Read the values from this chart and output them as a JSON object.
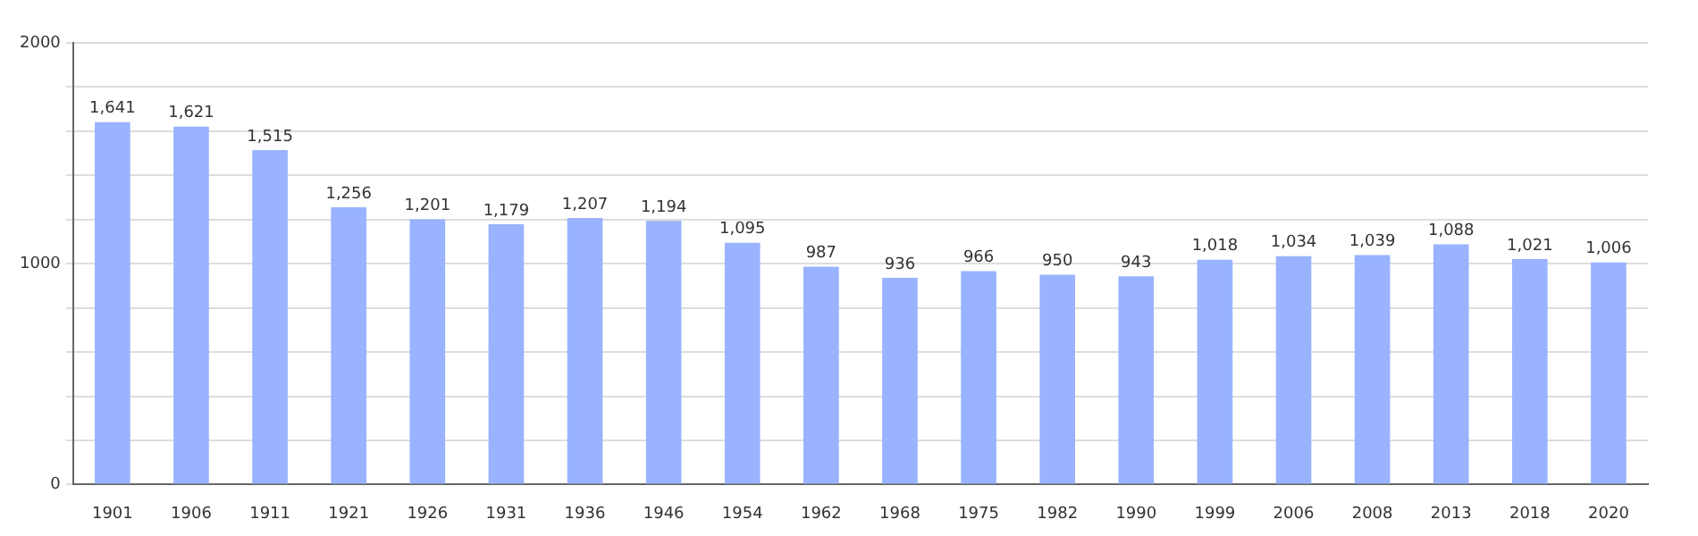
{
  "chart_data": {
    "type": "bar",
    "categories": [
      "1901",
      "1906",
      "1911",
      "1921",
      "1926",
      "1931",
      "1936",
      "1946",
      "1954",
      "1962",
      "1968",
      "1975",
      "1982",
      "1990",
      "1999",
      "2006",
      "2008",
      "2013",
      "2018",
      "2020"
    ],
    "values": [
      1641,
      1621,
      1515,
      1256,
      1201,
      1179,
      1207,
      1194,
      1095,
      987,
      936,
      966,
      950,
      943,
      1018,
      1034,
      1039,
      1088,
      1021,
      1006
    ],
    "value_labels": [
      "1,641",
      "1,621",
      "1,515",
      "1,256",
      "1,201",
      "1,179",
      "1,207",
      "1,194",
      "1,095",
      "987",
      "936",
      "966",
      "950",
      "943",
      "1,018",
      "1,034",
      "1,039",
      "1,088",
      "1,021",
      "1,006"
    ],
    "color": "#99b3ff",
    "ylim": [
      0,
      2000
    ],
    "yticks": [
      0,
      {
        "value": 200,
        "label": null
      },
      {
        "value": 400,
        "label": null
      },
      {
        "value": 600,
        "label": null
      },
      {
        "value": 800,
        "label": null
      },
      1000,
      {
        "value": 1200,
        "label": null
      },
      {
        "value": 1400,
        "label": null
      },
      {
        "value": 1600,
        "label": null
      },
      {
        "value": 1800,
        "label": null
      },
      2000
    ],
    "grid": true,
    "legend": false
  }
}
